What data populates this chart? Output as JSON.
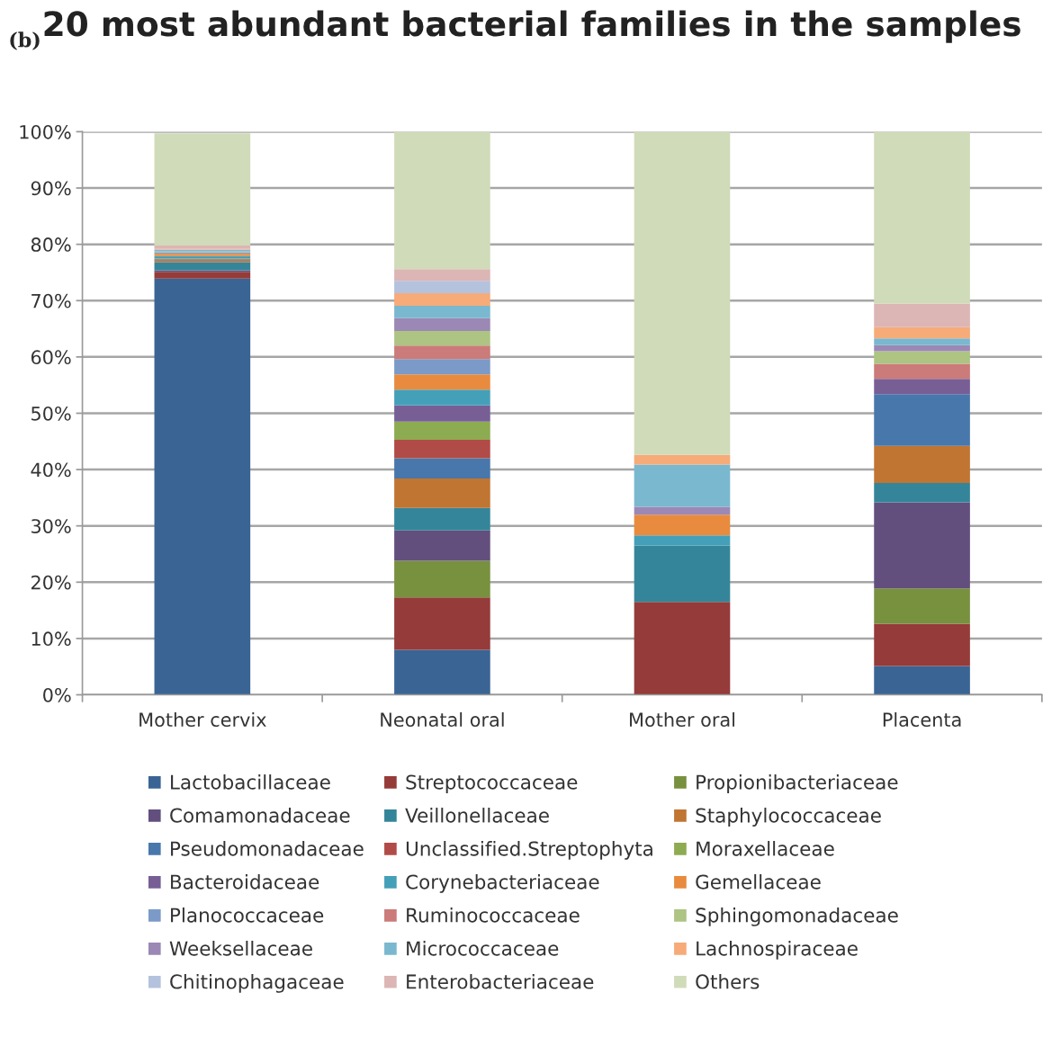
{
  "chart_data": {
    "type": "bar",
    "stacked": true,
    "title": "20 most abundant bacterial families in the samples",
    "annotations": [
      "(b)"
    ],
    "categories": [
      "Mother cervix",
      "Neonatal oral",
      "Mother oral",
      "Placenta"
    ],
    "ylim": [
      0,
      100
    ],
    "yticks": [
      {
        "value": 0,
        "label": "0%"
      },
      {
        "value": 10,
        "label": "10%"
      },
      {
        "value": 20,
        "label": "20%"
      },
      {
        "value": 30,
        "label": "30%"
      },
      {
        "value": 40,
        "label": "40%"
      },
      {
        "value": 50,
        "label": "50%"
      },
      {
        "value": 60,
        "label": "60%"
      },
      {
        "value": 70,
        "label": "70%"
      },
      {
        "value": 80,
        "label": "80%"
      },
      {
        "value": 90,
        "label": "90%"
      },
      {
        "value": 100,
        "label": "100%"
      }
    ],
    "grid": "y",
    "legend": "bottom",
    "series": [
      {
        "name": "Lactobacillaceae",
        "color": "#3a6494",
        "values": [
          73.9,
          8.0,
          0,
          5.1
        ]
      },
      {
        "name": "Streptococcaceae",
        "color": "#953b39",
        "values": [
          1.2,
          9.3,
          16.5,
          7.5
        ]
      },
      {
        "name": "Propionibacteriaceae",
        "color": "#77913f",
        "values": [
          0,
          6.5,
          0,
          6.3
        ]
      },
      {
        "name": "Comamonadaceae",
        "color": "#634f7d",
        "values": [
          0.3,
          5.4,
          0,
          15.3
        ]
      },
      {
        "name": "Veillonellaceae",
        "color": "#348599",
        "values": [
          1.4,
          4.0,
          10.0,
          3.4
        ]
      },
      {
        "name": "Staphylococcaceae",
        "color": "#c07532",
        "values": [
          0.3,
          5.2,
          0,
          6.6
        ]
      },
      {
        "name": "Pseudomonadaceae",
        "color": "#4877ab",
        "values": [
          0.2,
          3.6,
          0,
          9.2
        ]
      },
      {
        "name": "Unclassified.Streptophyta",
        "color": "#b14b47",
        "values": [
          0.1,
          3.3,
          0,
          0
        ]
      },
      {
        "name": "Moraxellaceae",
        "color": "#8dab50",
        "values": [
          0.1,
          3.2,
          0,
          0
        ]
      },
      {
        "name": "Bacteroidaceae",
        "color": "#775f96",
        "values": [
          null,
          2.9,
          0,
          2.7
        ]
      },
      {
        "name": "Corynebacteriaceae",
        "color": "#44a0b8",
        "values": [
          0.4,
          2.8,
          1.8,
          0
        ]
      },
      {
        "name": "Gemellaceae",
        "color": "#e88b3e",
        "values": [
          0.4,
          2.7,
          3.7,
          0
        ]
      },
      {
        "name": "Planococcaceae",
        "color": "#7b9ac8",
        "values": [
          0.2,
          2.7,
          0,
          0
        ]
      },
      {
        "name": "Ruminococcaceae",
        "color": "#cb7b79",
        "values": [
          0.1,
          2.4,
          0,
          2.7
        ]
      },
      {
        "name": "Sphingomonadaceae",
        "color": "#adc483",
        "values": [
          0.1,
          2.6,
          0,
          2.2
        ]
      },
      {
        "name": "Weeksellaceae",
        "color": "#9b88b5",
        "values": [
          null,
          2.3,
          1.4,
          1.1
        ]
      },
      {
        "name": "Micrococcaceae",
        "color": "#7ab8cf",
        "values": [
          0.3,
          2.2,
          7.5,
          1.2
        ]
      },
      {
        "name": "Lachnospiraceae",
        "color": "#f6ab78",
        "values": [
          0.1,
          2.2,
          1.7,
          2.0
        ]
      },
      {
        "name": "Chitinophagaceae",
        "color": "#b4c2de",
        "values": [
          0.1,
          2.2,
          0,
          0
        ]
      },
      {
        "name": "Enterobacteriaceae",
        "color": "#dcb5b5",
        "values": [
          0.6,
          2.1,
          0,
          4.2
        ]
      },
      {
        "name": "Others",
        "color": "#d0dbb9",
        "values": [
          19.9,
          24.4,
          57.4,
          30.5
        ]
      }
    ]
  }
}
